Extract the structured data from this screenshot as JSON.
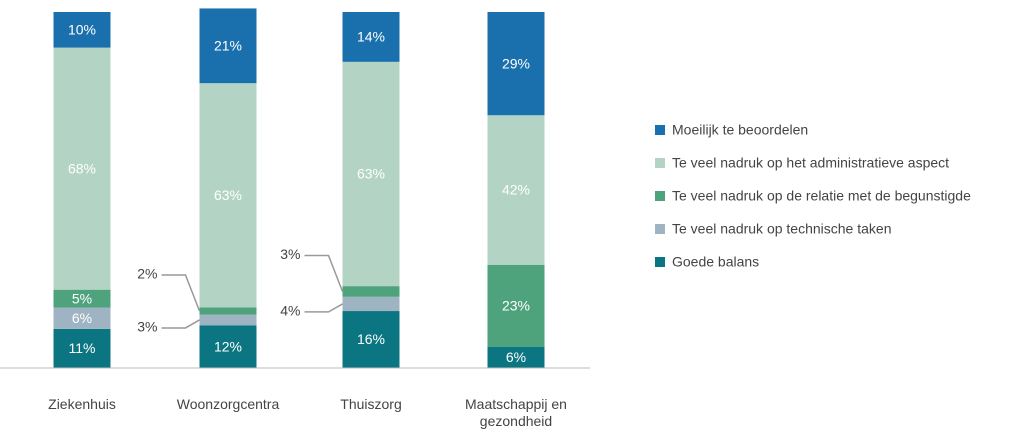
{
  "chart_data": {
    "type": "stacked_bar",
    "categories": [
      "Ziekenhuis",
      "Woonzorgcentra",
      "Thuiszorg",
      "Maatschappij en gezondheid"
    ],
    "ylim": [
      0,
      100
    ],
    "series": [
      {
        "name": "Moeilijk te beoordelen",
        "color": "#1a6fad",
        "values": [
          10,
          21,
          14,
          29
        ],
        "value_labels": [
          "10%",
          "21%",
          "14%",
          "29%"
        ]
      },
      {
        "name": "Te veel nadruk op het administratieve aspect",
        "color": "#b3d4c4",
        "values": [
          68,
          63,
          63,
          42
        ],
        "value_labels": [
          "68%",
          "63%",
          "63%",
          "42%"
        ]
      },
      {
        "name": "Te veel nadruk op de relatie met de begunstigde",
        "color": "#4ea27c",
        "values": [
          5,
          2,
          3,
          23
        ],
        "value_labels": [
          "5%",
          "2%",
          "3%",
          "23%"
        ]
      },
      {
        "name": "Te veel nadruk op technische taken",
        "color": "#9fb4c2",
        "values": [
          6,
          3,
          4,
          0
        ],
        "value_labels": [
          "6%",
          "3%",
          "4%",
          null
        ]
      },
      {
        "name": "Goede balans",
        "color": "#0b7682",
        "values": [
          11,
          12,
          16,
          6
        ],
        "value_labels": [
          "11%",
          "12%",
          "16%",
          "6%"
        ]
      }
    ],
    "legend": "right"
  }
}
